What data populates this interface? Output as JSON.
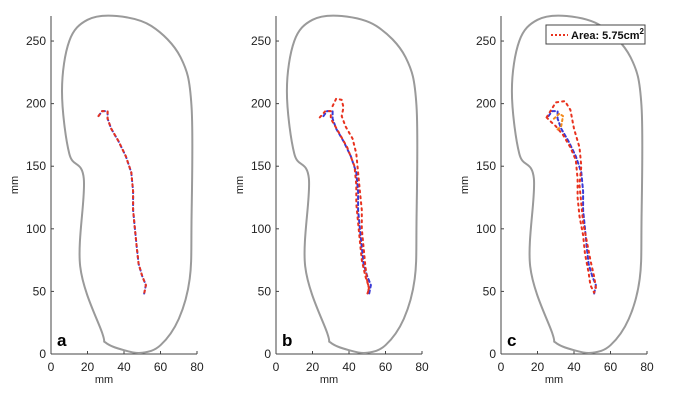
{
  "chart_data": [
    {
      "type": "line",
      "panel_label": "a",
      "xlabel": "mm",
      "ylabel": "mm",
      "xlim": [
        0,
        80
      ],
      "ylim": [
        0,
        270
      ],
      "xticks": [
        0,
        20,
        40,
        60,
        80
      ],
      "yticks": [
        0,
        50,
        100,
        150,
        200,
        250
      ],
      "grid": false,
      "foot_outline": [
        [
          28,
          17
        ],
        [
          16,
          70
        ],
        [
          18,
          140
        ],
        [
          10,
          160
        ],
        [
          6,
          210
        ],
        [
          10,
          250
        ],
        [
          20,
          267
        ],
        [
          36,
          270
        ],
        [
          55,
          262
        ],
        [
          71,
          237
        ],
        [
          77,
          198
        ],
        [
          77,
          105
        ],
        [
          76,
          60
        ],
        [
          70,
          28
        ],
        [
          60,
          7
        ],
        [
          50,
          1
        ],
        [
          40,
          3
        ],
        [
          30,
          9
        ],
        [
          28,
          17
        ]
      ],
      "series": [
        {
          "color": "#3a3ad6",
          "dash": "3,3",
          "points": [
            [
              26,
              190
            ],
            [
              28,
              194
            ],
            [
              31,
              194
            ],
            [
              31,
              188
            ],
            [
              33,
              180
            ],
            [
              37,
              170
            ],
            [
              41,
              158
            ],
            [
              44,
              145
            ],
            [
              45,
              130
            ],
            [
              45,
              115
            ],
            [
              46,
              100
            ],
            [
              47,
              85
            ],
            [
              48,
              72
            ],
            [
              50,
              62
            ],
            [
              52,
              55
            ],
            [
              51,
              48
            ]
          ]
        },
        {
          "color": "#e8321e",
          "dash": "2,4",
          "points": [
            [
              26,
              190
            ],
            [
              28,
              194
            ],
            [
              31,
              194
            ],
            [
              31,
              188
            ],
            [
              33,
              180
            ],
            [
              37,
              170
            ],
            [
              41,
              158
            ],
            [
              44,
              145
            ],
            [
              45,
              130
            ],
            [
              45,
              115
            ],
            [
              46,
              100
            ],
            [
              47,
              85
            ],
            [
              48,
              72
            ],
            [
              50,
              62
            ],
            [
              52,
              55
            ],
            [
              51,
              48
            ]
          ]
        }
      ]
    },
    {
      "type": "line",
      "panel_label": "b",
      "xlabel": "mm",
      "ylabel": "mm",
      "xlim": [
        0,
        80
      ],
      "ylim": [
        0,
        270
      ],
      "xticks": [
        0,
        20,
        40,
        60,
        80
      ],
      "yticks": [
        0,
        50,
        100,
        150,
        200,
        250
      ],
      "grid": false,
      "foot_outline": [
        [
          28,
          17
        ],
        [
          16,
          70
        ],
        [
          18,
          140
        ],
        [
          10,
          160
        ],
        [
          6,
          210
        ],
        [
          10,
          250
        ],
        [
          20,
          267
        ],
        [
          36,
          270
        ],
        [
          55,
          262
        ],
        [
          71,
          237
        ],
        [
          77,
          198
        ],
        [
          77,
          105
        ],
        [
          76,
          60
        ],
        [
          70,
          28
        ],
        [
          60,
          7
        ],
        [
          50,
          1
        ],
        [
          40,
          3
        ],
        [
          30,
          9
        ],
        [
          28,
          17
        ]
      ],
      "series": [
        {
          "color": "#3a3ad6",
          "dash": "3,3",
          "points": [
            [
              26,
              190
            ],
            [
              28,
              194
            ],
            [
              31,
              194
            ],
            [
              31,
              188
            ],
            [
              33,
              180
            ],
            [
              37,
              170
            ],
            [
              41,
              158
            ],
            [
              44,
              145
            ],
            [
              45,
              130
            ],
            [
              45,
              115
            ],
            [
              46,
              100
            ],
            [
              47,
              85
            ],
            [
              48,
              72
            ],
            [
              50,
              62
            ],
            [
              52,
              55
            ],
            [
              51,
              48
            ]
          ]
        },
        {
          "color": "#e8321e",
          "dash": "2,4",
          "points": [
            [
              24,
              189
            ],
            [
              27,
              194
            ],
            [
              30,
              194
            ],
            [
              30,
              188
            ],
            [
              34,
              178
            ],
            [
              39,
              165
            ],
            [
              43,
              150
            ],
            [
              44,
              135
            ],
            [
              44,
              120
            ],
            [
              45,
              105
            ],
            [
              46,
              90
            ],
            [
              47,
              75
            ],
            [
              49,
              62
            ],
            [
              51,
              53
            ],
            [
              50,
              48
            ]
          ]
        },
        {
          "color": "#e8321e",
          "dash": "2,4",
          "points": [
            [
              31,
              198
            ],
            [
              33,
              204
            ],
            [
              36,
              203
            ],
            [
              37,
              197
            ],
            [
              36,
              190
            ],
            [
              38,
              182
            ],
            [
              42,
              172
            ],
            [
              44,
              160
            ],
            [
              45,
              145
            ],
            [
              46,
              130
            ],
            [
              47,
              115
            ],
            [
              47,
              100
            ],
            [
              48,
              85
            ],
            [
              49,
              70
            ],
            [
              50,
              58
            ],
            [
              51,
              52
            ],
            [
              50,
              48
            ]
          ]
        }
      ]
    },
    {
      "type": "area",
      "panel_label": "c",
      "xlabel": "mm",
      "ylabel": "mm",
      "xlim": [
        0,
        80
      ],
      "ylim": [
        0,
        270
      ],
      "xticks": [
        0,
        20,
        40,
        60,
        80
      ],
      "yticks": [
        0,
        50,
        100,
        150,
        200,
        250
      ],
      "grid": false,
      "legend": {
        "text": "Area: 5.75cm",
        "superscript": "2",
        "position": "top-right",
        "color": "#e8321e"
      },
      "foot_outline": [
        [
          28,
          17
        ],
        [
          16,
          70
        ],
        [
          18,
          140
        ],
        [
          10,
          160
        ],
        [
          6,
          210
        ],
        [
          10,
          250
        ],
        [
          20,
          267
        ],
        [
          36,
          270
        ],
        [
          55,
          262
        ],
        [
          71,
          237
        ],
        [
          77,
          198
        ],
        [
          77,
          105
        ],
        [
          76,
          60
        ],
        [
          70,
          28
        ],
        [
          60,
          7
        ],
        [
          50,
          1
        ],
        [
          40,
          3
        ],
        [
          30,
          9
        ],
        [
          28,
          17
        ]
      ],
      "series": [
        {
          "color": "#3a3ad6",
          "dash": "3,3",
          "points": [
            [
              26,
              190
            ],
            [
              28,
              194
            ],
            [
              31,
              194
            ],
            [
              31,
              188
            ],
            [
              33,
              180
            ],
            [
              37,
              170
            ],
            [
              41,
              158
            ],
            [
              44,
              145
            ],
            [
              45,
              130
            ],
            [
              45,
              115
            ],
            [
              46,
              100
            ],
            [
              47,
              85
            ],
            [
              48,
              72
            ],
            [
              50,
              62
            ],
            [
              52,
              55
            ],
            [
              51,
              48
            ]
          ]
        },
        {
          "color": "#e8321e",
          "dash": "2,4",
          "points": [
            [
              25,
              189
            ],
            [
              30,
              201
            ],
            [
              35,
              202
            ],
            [
              38,
              195
            ],
            [
              40,
              180
            ],
            [
              43,
              165
            ],
            [
              44,
              150
            ],
            [
              43,
              135
            ],
            [
              44,
              120
            ],
            [
              45,
              105
            ],
            [
              47,
              90
            ],
            [
              49,
              75
            ],
            [
              51,
              62
            ],
            [
              52,
              53
            ],
            [
              51,
              49
            ],
            [
              49,
              55
            ],
            [
              48,
              65
            ],
            [
              46,
              80
            ],
            [
              45,
              95
            ],
            [
              43,
              110
            ],
            [
              42,
              125
            ],
            [
              42,
              140
            ],
            [
              41,
              155
            ],
            [
              38,
              165
            ],
            [
              34,
              175
            ],
            [
              30,
              182
            ],
            [
              27,
              186
            ],
            [
              25,
              189
            ]
          ]
        },
        {
          "color": "#f28a1c",
          "dash": "2,3",
          "points": [
            [
              29,
              188
            ],
            [
              32,
              192
            ],
            [
              34,
              190
            ],
            [
              33,
              182
            ],
            [
              30,
              178
            ]
          ]
        }
      ]
    }
  ]
}
